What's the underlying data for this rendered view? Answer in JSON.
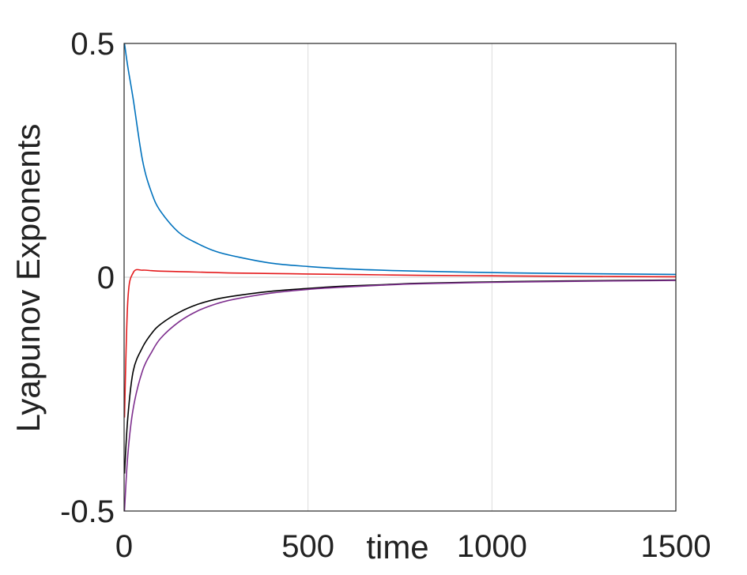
{
  "chart_data": {
    "type": "line",
    "title": "",
    "xlabel": "time",
    "ylabel": "Lyapunov Exponents",
    "xlim": [
      0,
      1500
    ],
    "ylim": [
      -0.5,
      0.5
    ],
    "xticks": [
      0,
      500,
      1000,
      1500
    ],
    "yticks": [
      -0.5,
      0,
      0.5
    ],
    "x_tick_labels": [
      "0",
      "500",
      "1000",
      "1500"
    ],
    "y_tick_labels": [
      "-0.5",
      "0",
      "0.5"
    ],
    "grid": "vertical",
    "legend": "none",
    "x": [
      1,
      10,
      25,
      50,
      75,
      100,
      150,
      200,
      250,
      300,
      400,
      500,
      600,
      700,
      800,
      1000,
      1200,
      1500
    ],
    "series": [
      {
        "color": "#0072BD",
        "values": [
          0.5,
          0.45,
          0.38,
          0.25,
          0.18,
          0.14,
          0.095,
          0.072,
          0.055,
          0.045,
          0.03,
          0.023,
          0.018,
          0.015,
          0.013,
          0.01,
          0.008,
          0.006
        ]
      },
      {
        "color": "#E41A1C",
        "values": [
          -0.3,
          -0.05,
          0.01,
          0.015,
          0.014,
          0.013,
          0.012,
          0.011,
          0.01,
          0.009,
          0.008,
          0.007,
          0.006,
          0.005,
          0.004,
          0.003,
          0.002,
          0.001
        ]
      },
      {
        "color": "#000000",
        "values": [
          -0.42,
          -0.3,
          -0.2,
          -0.15,
          -0.12,
          -0.1,
          -0.075,
          -0.058,
          -0.047,
          -0.04,
          -0.03,
          -0.024,
          -0.019,
          -0.016,
          -0.013,
          -0.01,
          -0.008,
          -0.006
        ]
      },
      {
        "color": "#7E2F8E",
        "values": [
          -0.5,
          -0.38,
          -0.28,
          -0.2,
          -0.16,
          -0.13,
          -0.095,
          -0.072,
          -0.057,
          -0.047,
          -0.034,
          -0.026,
          -0.021,
          -0.017,
          -0.014,
          -0.011,
          -0.009,
          -0.007
        ]
      }
    ]
  }
}
